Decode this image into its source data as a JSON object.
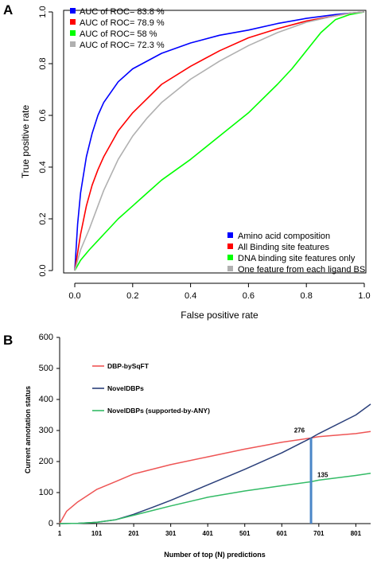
{
  "chart_data": [
    {
      "panel_label": "A",
      "type": "line",
      "xlabel": "False positive rate",
      "ylabel": "True positive rate",
      "xlim": [
        0,
        1
      ],
      "ylim": [
        0,
        1
      ],
      "xticks": [
        "0.0",
        "0.2",
        "0.4",
        "0.6",
        "0.8",
        "1.0"
      ],
      "yticks": [
        "0.0",
        "0.2",
        "0.4",
        "0.6",
        "0.8",
        "1.0"
      ],
      "grid": false,
      "auc_labels": [
        "AUC of ROC= 83.8 %",
        "AUC of ROC= 78.9 %",
        "AUC of ROC= 58 %",
        "AUC of ROC= 72.3 %"
      ],
      "legend_placement": "bottom-right",
      "series": [
        {
          "name": "Amino acid composition",
          "color": "#0000ff",
          "x": [
            0,
            0.01,
            0.02,
            0.04,
            0.06,
            0.08,
            0.1,
            0.15,
            0.2,
            0.3,
            0.4,
            0.5,
            0.6,
            0.7,
            0.8,
            0.9,
            0.95,
            1.0
          ],
          "y": [
            0,
            0.18,
            0.3,
            0.44,
            0.53,
            0.6,
            0.65,
            0.73,
            0.78,
            0.84,
            0.88,
            0.91,
            0.93,
            0.955,
            0.975,
            0.99,
            0.995,
            1.0
          ]
        },
        {
          "name": "All Binding site features",
          "color": "#ff0000",
          "x": [
            0,
            0.02,
            0.04,
            0.06,
            0.08,
            0.1,
            0.15,
            0.2,
            0.3,
            0.4,
            0.5,
            0.6,
            0.7,
            0.8,
            0.9,
            0.95,
            1.0
          ],
          "y": [
            0,
            0.14,
            0.25,
            0.33,
            0.39,
            0.44,
            0.54,
            0.61,
            0.72,
            0.79,
            0.85,
            0.9,
            0.935,
            0.965,
            0.985,
            0.995,
            1.0
          ]
        },
        {
          "name": "DNA binding site features only",
          "color": "#00ff00",
          "x": [
            0,
            0.02,
            0.05,
            0.1,
            0.15,
            0.2,
            0.25,
            0.3,
            0.4,
            0.5,
            0.6,
            0.7,
            0.75,
            0.8,
            0.85,
            0.9,
            0.95,
            1.0
          ],
          "y": [
            0,
            0.04,
            0.08,
            0.14,
            0.2,
            0.25,
            0.3,
            0.35,
            0.43,
            0.52,
            0.61,
            0.72,
            0.78,
            0.85,
            0.92,
            0.97,
            0.99,
            1.0
          ]
        },
        {
          "name": "One feature from each ligand BS",
          "color": "#b0b0b0",
          "x": [
            0,
            0.02,
            0.05,
            0.08,
            0.1,
            0.15,
            0.2,
            0.25,
            0.3,
            0.4,
            0.5,
            0.6,
            0.7,
            0.8,
            0.9,
            0.95,
            1.0
          ],
          "y": [
            0,
            0.08,
            0.16,
            0.25,
            0.31,
            0.43,
            0.52,
            0.59,
            0.65,
            0.74,
            0.81,
            0.87,
            0.92,
            0.96,
            0.985,
            0.995,
            1.0
          ]
        }
      ]
    },
    {
      "panel_label": "B",
      "type": "line",
      "xlabel": "Number of top (N) predictions",
      "ylabel": "Current annotation status",
      "xlim": [
        1,
        841
      ],
      "ylim": [
        0,
        600
      ],
      "xticks": [
        "1",
        "101",
        "201",
        "301",
        "401",
        "501",
        "601",
        "701",
        "801"
      ],
      "xtick_values": [
        1,
        101,
        201,
        301,
        401,
        501,
        601,
        701,
        801
      ],
      "yticks": [
        "0",
        "100",
        "200",
        "300",
        "400",
        "500",
        "600"
      ],
      "grid": false,
      "legend_placement": "top-left",
      "annotations": [
        {
          "text": "276",
          "x": 680,
          "y": 276
        },
        {
          "text": "135",
          "x": 680,
          "y": 135
        }
      ],
      "vertical_marker": {
        "x": 680,
        "y_from": 0,
        "y_to": 276,
        "color": "#4a86c8"
      },
      "series": [
        {
          "name": "DBP-bySqFT",
          "color": "#ee5555",
          "x": [
            1,
            20,
            50,
            101,
            151,
            201,
            301,
            401,
            501,
            601,
            680,
            701,
            801,
            841
          ],
          "y": [
            0,
            40,
            70,
            110,
            135,
            160,
            190,
            215,
            240,
            262,
            276,
            280,
            290,
            297
          ]
        },
        {
          "name": "NovelDBPs",
          "color": "#2a3f7a",
          "x": [
            1,
            51,
            101,
            151,
            201,
            251,
            301,
            401,
            501,
            601,
            680,
            701,
            801,
            841
          ],
          "y": [
            0,
            1,
            4,
            12,
            30,
            52,
            75,
            125,
            175,
            228,
            276,
            290,
            350,
            385
          ]
        },
        {
          "name": "NovelDBPs (supported-by-ANY)",
          "color": "#33bb66",
          "x": [
            1,
            51,
            101,
            151,
            201,
            251,
            301,
            401,
            501,
            601,
            680,
            701,
            801,
            841
          ],
          "y": [
            0,
            1,
            4,
            12,
            27,
            42,
            57,
            85,
            105,
            122,
            135,
            140,
            155,
            162
          ]
        }
      ]
    }
  ]
}
